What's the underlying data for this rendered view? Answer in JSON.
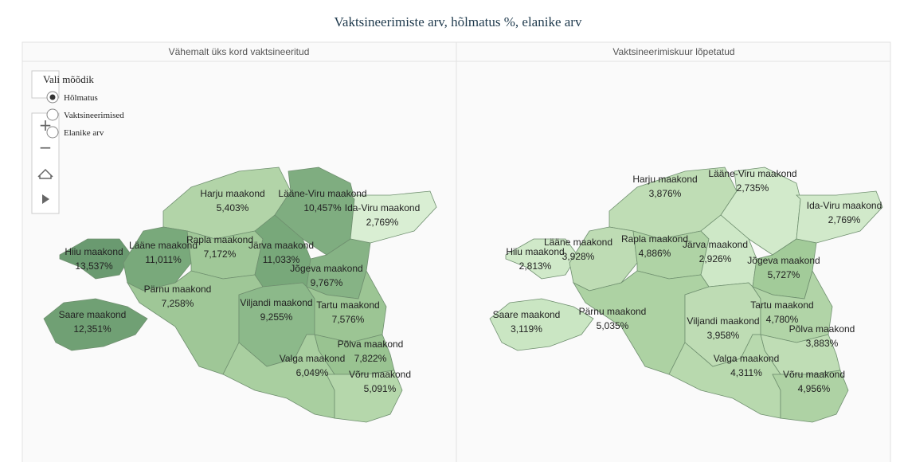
{
  "title": "Vaktsineerimiste arv, hõlmatus %, elanike arv",
  "controls": {
    "label": "Vali mõõdik",
    "options": [
      "Hõlmatus",
      "Vaktsineerimised",
      "Elanike arv"
    ],
    "selected": 0
  },
  "panels": [
    {
      "title": "Vähemalt üks kord vaktsineeritud",
      "regions": [
        {
          "name": "Harju maakond",
          "value": "5,403%",
          "color": "#b2d4a8"
        },
        {
          "name": "Lääne-Viru maakond",
          "value": "10,457%",
          "color": "#7fad80"
        },
        {
          "name": "Ida-Viru maakond",
          "value": "2,769%",
          "color": "#d9eed3"
        },
        {
          "name": "Hiiu maakond",
          "value": "13,537%",
          "color": "#6a9a70"
        },
        {
          "name": "Lääne maakond",
          "value": "11,011%",
          "color": "#79a97b"
        },
        {
          "name": "Rapla maakond",
          "value": "7,172%",
          "color": "#a0c898"
        },
        {
          "name": "Järva maakond",
          "value": "11,033%",
          "color": "#78a87a"
        },
        {
          "name": "Jõgeva maakond",
          "value": "9,767%",
          "color": "#86b385"
        },
        {
          "name": "Pärnu maakond",
          "value": "7,258%",
          "color": "#9fc797"
        },
        {
          "name": "Viljandi maakond",
          "value": "9,255%",
          "color": "#8cb98a"
        },
        {
          "name": "Tartu maakond",
          "value": "7,576%",
          "color": "#9cc594"
        },
        {
          "name": "Saare maakond",
          "value": "12,351%",
          "color": "#70a074"
        },
        {
          "name": "Põlva maakond",
          "value": "7,822%",
          "color": "#99c391"
        },
        {
          "name": "Valga maakond",
          "value": "6,049%",
          "color": "#a9cfa0"
        },
        {
          "name": "Võru maakond",
          "value": "5,091%",
          "color": "#b5d7ab"
        }
      ]
    },
    {
      "title": "Vaktsineerimiskuur lõpetatud",
      "regions": [
        {
          "name": "Harju maakond",
          "value": "3,876%",
          "color": "#bfddb5"
        },
        {
          "name": "Lääne-Viru maakond",
          "value": "2,735%",
          "color": "#d2eacb"
        },
        {
          "name": "Ida-Viru maakond",
          "value": "2,769%",
          "color": "#d1e9ca"
        },
        {
          "name": "Hiiu maakond",
          "value": "2,813%",
          "color": "#d0e9c9"
        },
        {
          "name": "Lääne maakond",
          "value": "3,928%",
          "color": "#bedcb4"
        },
        {
          "name": "Rapla maakond",
          "value": "4,886%",
          "color": "#afd3a5"
        },
        {
          "name": "Järva maakond",
          "value": "2,926%",
          "color": "#cee8c7"
        },
        {
          "name": "Jõgeva maakond",
          "value": "5,727%",
          "color": "#a2cb99"
        },
        {
          "name": "Pärnu maakond",
          "value": "5,035%",
          "color": "#add2a3"
        },
        {
          "name": "Viljandi maakond",
          "value": "3,958%",
          "color": "#bedcb4"
        },
        {
          "name": "Tartu maakond",
          "value": "4,780%",
          "color": "#b1d4a7"
        },
        {
          "name": "Saare maakond",
          "value": "3,119%",
          "color": "#cae6c3"
        },
        {
          "name": "Põlva maakond",
          "value": "3,883%",
          "color": "#bfddb5"
        },
        {
          "name": "Valga maakond",
          "value": "4,311%",
          "color": "#b8d9ae"
        },
        {
          "name": "Võru maakond",
          "value": "4,956%",
          "color": "#aed2a4"
        }
      ]
    }
  ]
}
